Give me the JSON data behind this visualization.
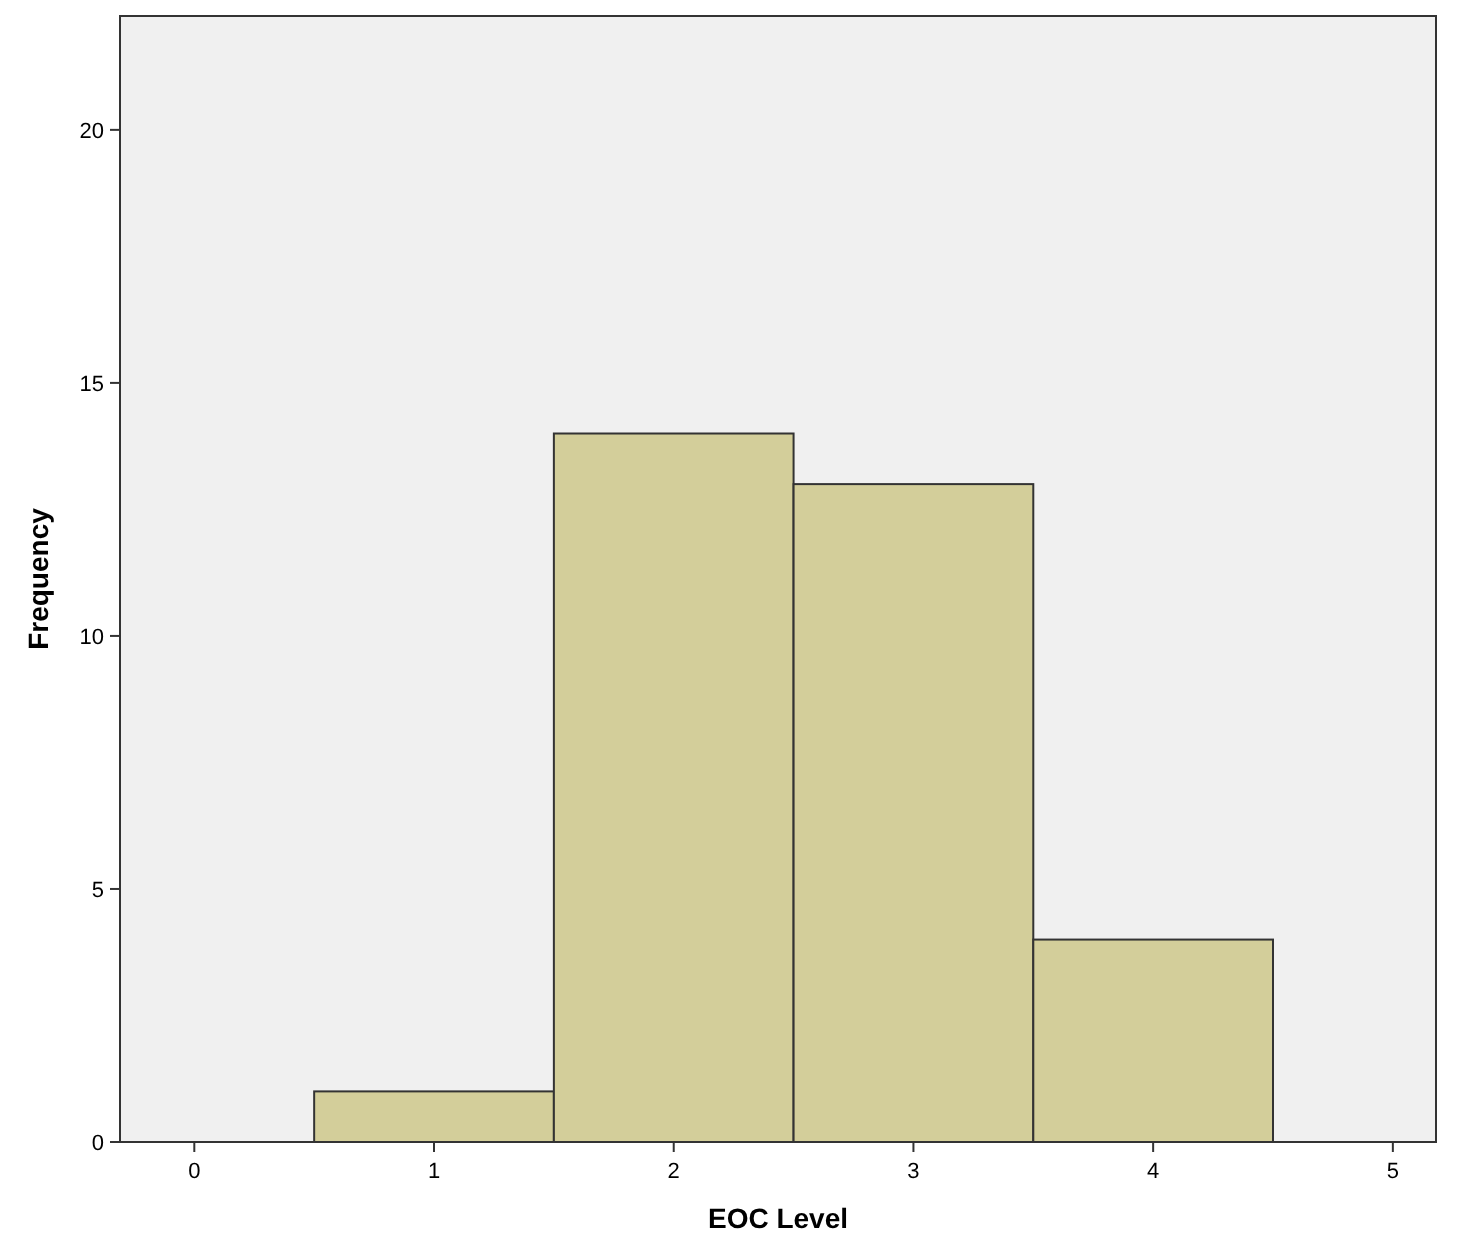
{
  "chart_data": {
    "type": "histogram",
    "xlabel": "EOC Level",
    "ylabel": "Frequency",
    "bins": [
      0.5,
      1.5,
      2.5,
      3.5,
      4.5
    ],
    "values": [
      1,
      14,
      13,
      4
    ],
    "color": "#d3ce9a",
    "xlim": [
      -0.31,
      5.18
    ],
    "xticks": [
      0,
      1,
      2,
      3,
      4,
      5
    ],
    "ylim": [
      0,
      22.25
    ],
    "yticks": [
      0,
      5,
      10,
      15,
      20
    ],
    "grid": false
  }
}
